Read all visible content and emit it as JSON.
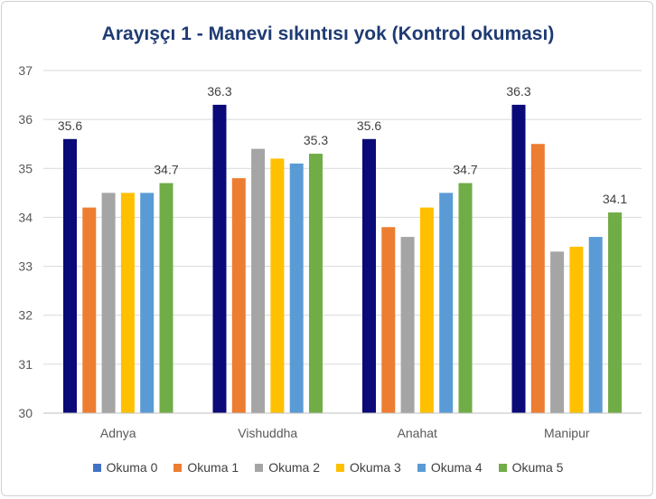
{
  "chart_data": {
    "type": "bar",
    "title": "Arayışçı 1 - Manevi sıkıntısı yok (Kontrol okuması)",
    "xlabel": "",
    "ylabel": "",
    "ylim": [
      30,
      37
    ],
    "yticks": [
      30,
      31,
      32,
      33,
      34,
      35,
      36,
      37
    ],
    "grid": true,
    "legend_position": "bottom",
    "categories": [
      "Adnya",
      "Vishuddha",
      "Anahat",
      "Manipur"
    ],
    "series": [
      {
        "name": "Okuma 0",
        "color": "#0a0a78",
        "legend_color": "#4472c4",
        "values": [
          35.6,
          36.3,
          35.6,
          36.3
        ]
      },
      {
        "name": "Okuma 1",
        "color": "#ed7d31",
        "values": [
          34.2,
          34.8,
          33.8,
          35.5
        ]
      },
      {
        "name": "Okuma 2",
        "color": "#a5a5a5",
        "values": [
          34.5,
          35.4,
          33.6,
          33.3
        ]
      },
      {
        "name": "Okuma 3",
        "color": "#ffc000",
        "values": [
          34.5,
          35.2,
          34.2,
          33.4
        ]
      },
      {
        "name": "Okuma 4",
        "color": "#5b9bd5",
        "values": [
          34.5,
          35.1,
          34.5,
          33.6
        ]
      },
      {
        "name": "Okuma 5",
        "color": "#70ad47",
        "values": [
          34.7,
          35.3,
          34.7,
          34.1
        ]
      }
    ],
    "data_labels": [
      {
        "series": 0,
        "category": 0,
        "text": "35.6"
      },
      {
        "series": 5,
        "category": 0,
        "text": "34.7"
      },
      {
        "series": 0,
        "category": 1,
        "text": "36.3"
      },
      {
        "series": 5,
        "category": 1,
        "text": "35.3"
      },
      {
        "series": 0,
        "category": 2,
        "text": "35.6"
      },
      {
        "series": 5,
        "category": 2,
        "text": "34.7"
      },
      {
        "series": 0,
        "category": 3,
        "text": "36.3"
      },
      {
        "series": 5,
        "category": 3,
        "text": "34.1"
      }
    ]
  }
}
